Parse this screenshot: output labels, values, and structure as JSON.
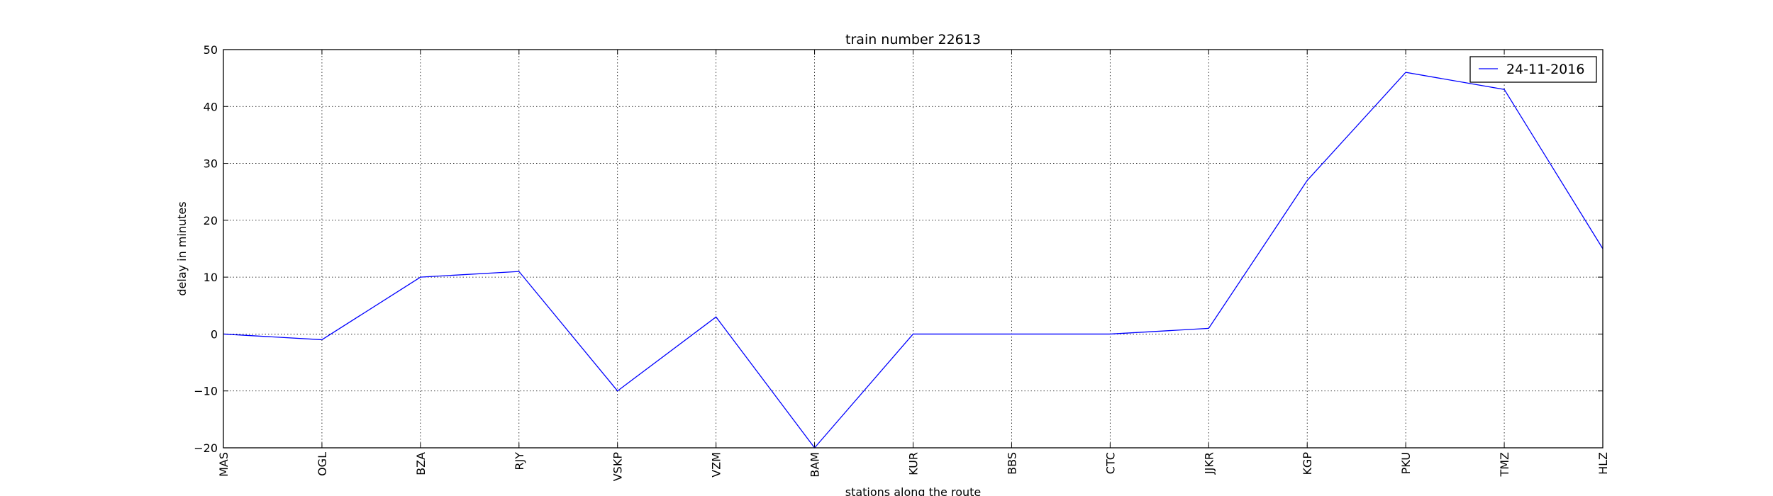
{
  "chart_data": {
    "type": "line",
    "title": "train number 22613",
    "xlabel": "stations along the route",
    "ylabel": "delay in minutes",
    "categories": [
      "MAS",
      "OGL",
      "BZA",
      "RJY",
      "VSKP",
      "VZM",
      "BAM",
      "KUR",
      "BBS",
      "CTC",
      "JJKR",
      "KGP",
      "PKU",
      "TMZ",
      "HLZ"
    ],
    "series": [
      {
        "name": "24-11-2016",
        "color": "#0000ff",
        "values": [
          0,
          -1,
          10,
          11,
          -10,
          3,
          -20,
          0,
          0,
          0,
          1,
          27,
          46,
          43,
          15
        ]
      }
    ],
    "ylim": [
      -20,
      50
    ],
    "yticks": [
      -20,
      -10,
      0,
      10,
      20,
      30,
      40,
      50
    ],
    "grid": true,
    "legend_position": "top-right"
  }
}
